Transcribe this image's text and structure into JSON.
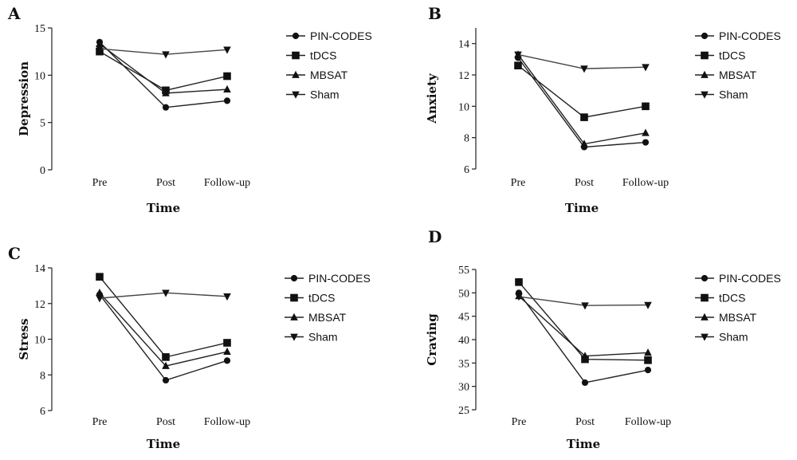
{
  "chart_data": [
    {
      "type": "line",
      "panel": "A",
      "title": "",
      "xlabel": "Time",
      "ylabel": "Depression",
      "categories": [
        "Pre",
        "Post",
        "Follow-up"
      ],
      "ylim": [
        0,
        15
      ],
      "yticks": [
        0,
        5,
        10,
        15
      ],
      "legend": "right",
      "series": [
        {
          "name": "PIN-CODES",
          "marker": "circle",
          "values": [
            13.5,
            6.6,
            7.3
          ]
        },
        {
          "name": "tDCS",
          "marker": "square",
          "values": [
            12.5,
            8.4,
            9.9
          ]
        },
        {
          "name": "MBSAT",
          "marker": "triangle-up",
          "values": [
            13.3,
            8.1,
            8.5
          ]
        },
        {
          "name": "Sham",
          "marker": "triangle-down",
          "values": [
            12.8,
            12.2,
            12.7
          ]
        }
      ]
    },
    {
      "type": "line",
      "panel": "B",
      "title": "",
      "xlabel": "Time",
      "ylabel": "Anxiety",
      "categories": [
        "Pre",
        "Post",
        "Follow-up"
      ],
      "ylim": [
        6,
        15
      ],
      "yticks": [
        6,
        8,
        10,
        12,
        14
      ],
      "legend": "right",
      "series": [
        {
          "name": "PIN-CODES",
          "marker": "circle",
          "values": [
            13.1,
            7.4,
            7.7
          ]
        },
        {
          "name": "tDCS",
          "marker": "square",
          "values": [
            12.6,
            9.3,
            10.0
          ]
        },
        {
          "name": "MBSAT",
          "marker": "triangle-up",
          "values": [
            13.3,
            7.6,
            8.3
          ]
        },
        {
          "name": "Sham",
          "marker": "triangle-down",
          "values": [
            13.3,
            12.4,
            12.5
          ]
        }
      ]
    },
    {
      "type": "line",
      "panel": "C",
      "title": "",
      "xlabel": "Time",
      "ylabel": "Stress",
      "categories": [
        "Pre",
        "Post",
        "Follow-up"
      ],
      "ylim": [
        6,
        14
      ],
      "yticks": [
        6,
        8,
        10,
        12,
        14
      ],
      "legend": "right",
      "series": [
        {
          "name": "PIN-CODES",
          "marker": "circle",
          "values": [
            12.5,
            7.7,
            8.8
          ]
        },
        {
          "name": "tDCS",
          "marker": "square",
          "values": [
            13.5,
            9.0,
            9.8
          ]
        },
        {
          "name": "MBSAT",
          "marker": "triangle-up",
          "values": [
            12.6,
            8.5,
            9.3
          ]
        },
        {
          "name": "Sham",
          "marker": "triangle-down",
          "values": [
            12.3,
            12.6,
            12.4
          ]
        }
      ]
    },
    {
      "type": "line",
      "panel": "D",
      "title": "",
      "xlabel": "Time",
      "ylabel": "Craving",
      "categories": [
        "Pre",
        "Post",
        "Follow-up"
      ],
      "ylim": [
        25,
        55
      ],
      "yticks": [
        25,
        30,
        35,
        40,
        45,
        50,
        55
      ],
      "legend": "right",
      "series": [
        {
          "name": "PIN-CODES",
          "marker": "circle",
          "values": [
            50.0,
            30.8,
            33.5
          ]
        },
        {
          "name": "tDCS",
          "marker": "square",
          "values": [
            52.3,
            35.8,
            35.6
          ]
        },
        {
          "name": "MBSAT",
          "marker": "triangle-up",
          "values": [
            49.3,
            36.5,
            37.2
          ]
        },
        {
          "name": "Sham",
          "marker": "triangle-down",
          "values": [
            49.2,
            47.3,
            47.4
          ]
        }
      ]
    }
  ]
}
